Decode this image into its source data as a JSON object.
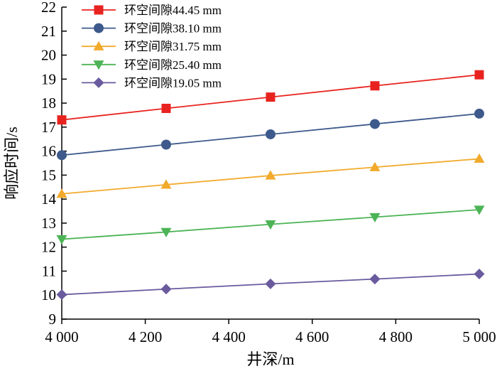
{
  "chart_data": {
    "type": "line",
    "title": "",
    "xlabel": "井深/m",
    "ylabel": "响应时间/s",
    "x": [
      4000,
      4250,
      4500,
      4750,
      5000
    ],
    "xlim": [
      4000,
      5000
    ],
    "ylim": [
      9,
      22
    ],
    "xticks": [
      4000,
      4200,
      4400,
      4600,
      4800,
      5000
    ],
    "xtick_labels": [
      "4 000",
      "4 200",
      "4 400",
      "4 600",
      "4 800",
      "5 000"
    ],
    "yticks": [
      9,
      10,
      11,
      12,
      13,
      14,
      15,
      16,
      17,
      18,
      19,
      20,
      21,
      22
    ],
    "ytick_labels": [
      "9",
      "10",
      "11",
      "12",
      "13",
      "14",
      "15",
      "16",
      "17",
      "18",
      "19",
      "20",
      "21",
      "22"
    ],
    "grid": false,
    "legend_position": "top-left",
    "series": [
      {
        "name": "环空间隙44.45 mm",
        "values": [
          17.3,
          17.78,
          18.25,
          18.72,
          19.18
        ],
        "color": "#e8231f",
        "marker": "square"
      },
      {
        "name": "环空间隙38.10 mm",
        "values": [
          15.83,
          16.27,
          16.7,
          17.13,
          17.56
        ],
        "color": "#3e5a8c",
        "marker": "circle"
      },
      {
        "name": "环空间隙31.75 mm",
        "values": [
          14.22,
          14.6,
          14.98,
          15.33,
          15.68
        ],
        "color": "#f2aa2c",
        "marker": "triangle-up"
      },
      {
        "name": "环空间隙25.40 mm",
        "values": [
          12.33,
          12.63,
          12.95,
          13.25,
          13.56
        ],
        "color": "#4cb456",
        "marker": "triangle-down"
      },
      {
        "name": "环空间隙19.05 mm",
        "values": [
          10.02,
          10.25,
          10.47,
          10.67,
          10.88
        ],
        "color": "#6a5a9e",
        "marker": "diamond"
      }
    ]
  }
}
